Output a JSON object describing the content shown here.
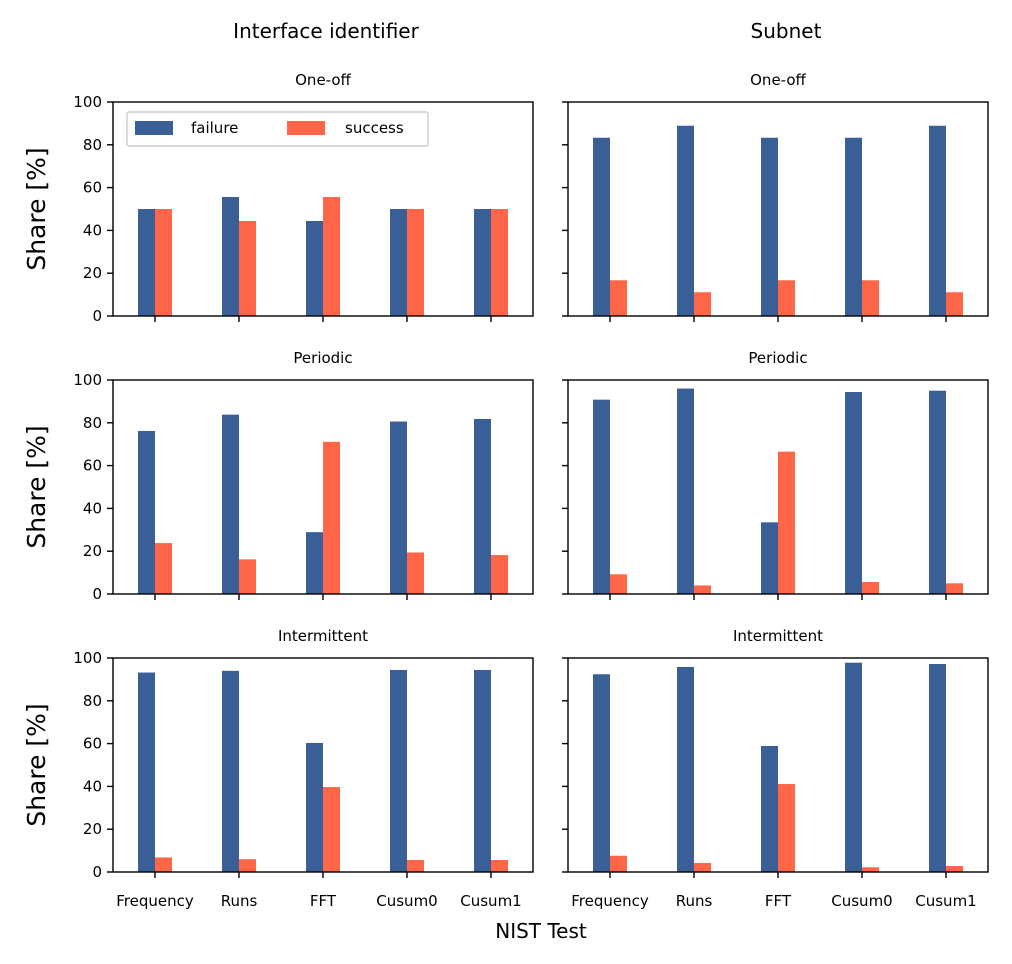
{
  "colors": {
    "failure": "#3a5e96",
    "success": "#ff6647"
  },
  "figure": {
    "col_titles": [
      "Interface identifier",
      "Subnet"
    ],
    "ylabel": "Share [%]",
    "xlabel": "NIST Test",
    "legend": {
      "placement": "upper-left of first panel",
      "entries": [
        "failure",
        "success"
      ]
    }
  },
  "chart_data": [
    {
      "type": "bar",
      "title": "One-off",
      "column": "Interface identifier",
      "categories": [
        "Frequency",
        "Runs",
        "FFT",
        "Cusum0",
        "Cusum1"
      ],
      "ylim": [
        0,
        100
      ],
      "yticks": [
        0,
        20,
        40,
        60,
        80,
        100
      ],
      "series": [
        {
          "name": "failure",
          "values": [
            50,
            55.6,
            44.4,
            50,
            50
          ]
        },
        {
          "name": "success",
          "values": [
            50,
            44.4,
            55.6,
            50,
            50
          ]
        }
      ]
    },
    {
      "type": "bar",
      "title": "One-off",
      "column": "Subnet",
      "categories": [
        "Frequency",
        "Runs",
        "FFT",
        "Cusum0",
        "Cusum1"
      ],
      "ylim": [
        0,
        100
      ],
      "yticks": [
        0,
        20,
        40,
        60,
        80,
        100
      ],
      "series": [
        {
          "name": "failure",
          "values": [
            83.3,
            88.9,
            83.3,
            83.3,
            88.9
          ]
        },
        {
          "name": "success",
          "values": [
            16.7,
            11.1,
            16.7,
            16.7,
            11.1
          ]
        }
      ]
    },
    {
      "type": "bar",
      "title": "Periodic",
      "column": "Interface identifier",
      "categories": [
        "Frequency",
        "Runs",
        "FFT",
        "Cusum0",
        "Cusum1"
      ],
      "ylim": [
        0,
        100
      ],
      "yticks": [
        0,
        20,
        40,
        60,
        80,
        100
      ],
      "series": [
        {
          "name": "failure",
          "values": [
            76.2,
            83.8,
            28.9,
            80.6,
            81.8
          ]
        },
        {
          "name": "success",
          "values": [
            23.8,
            16.2,
            71.1,
            19.4,
            18.2
          ]
        }
      ]
    },
    {
      "type": "bar",
      "title": "Periodic",
      "column": "Subnet",
      "categories": [
        "Frequency",
        "Runs",
        "FFT",
        "Cusum0",
        "Cusum1"
      ],
      "ylim": [
        0,
        100
      ],
      "yticks": [
        0,
        20,
        40,
        60,
        80,
        100
      ],
      "series": [
        {
          "name": "failure",
          "values": [
            90.8,
            96,
            33.5,
            94.4,
            95
          ]
        },
        {
          "name": "success",
          "values": [
            9.2,
            4,
            66.5,
            5.6,
            5
          ]
        }
      ]
    },
    {
      "type": "bar",
      "title": "Intermittent",
      "column": "Interface identifier",
      "categories": [
        "Frequency",
        "Runs",
        "FFT",
        "Cusum0",
        "Cusum1"
      ],
      "ylim": [
        0,
        100
      ],
      "yticks": [
        0,
        20,
        40,
        60,
        80,
        100
      ],
      "series": [
        {
          "name": "failure",
          "values": [
            93.2,
            94,
            60.3,
            94.4,
            94.4
          ]
        },
        {
          "name": "success",
          "values": [
            6.8,
            6,
            39.7,
            5.6,
            5.6
          ]
        }
      ]
    },
    {
      "type": "bar",
      "title": "Intermittent",
      "column": "Subnet",
      "categories": [
        "Frequency",
        "Runs",
        "FFT",
        "Cusum0",
        "Cusum1"
      ],
      "ylim": [
        0,
        100
      ],
      "yticks": [
        0,
        20,
        40,
        60,
        80,
        100
      ],
      "series": [
        {
          "name": "failure",
          "values": [
            92.4,
            95.8,
            58.9,
            97.8,
            97.2
          ]
        },
        {
          "name": "success",
          "values": [
            7.6,
            4.2,
            41.1,
            2.2,
            2.8
          ]
        }
      ]
    }
  ]
}
